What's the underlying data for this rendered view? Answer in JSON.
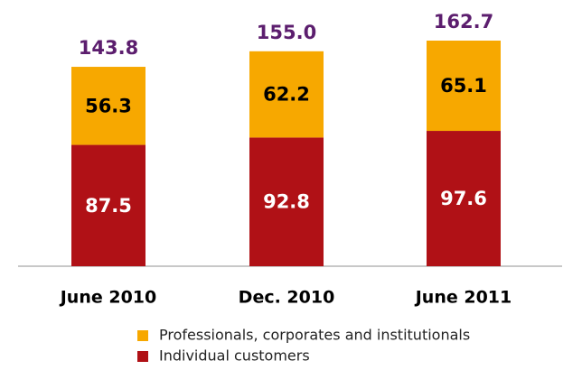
{
  "chart_data": {
    "type": "stacked_bar",
    "categories": [
      "June 2010",
      "Dec. 2010",
      "June 2011"
    ],
    "series": [
      {
        "name": "Individual customers",
        "color": "#b01116",
        "values": [
          87.5,
          92.8,
          97.6
        ]
      },
      {
        "name": "Professionals, corporates and institutionals",
        "color": "#f7a800",
        "values": [
          56.3,
          62.2,
          65.1
        ]
      }
    ],
    "totals": [
      143.8,
      155.0,
      162.7
    ],
    "totals_labels": [
      "143.8",
      "155.0",
      "162.7"
    ]
  }
}
